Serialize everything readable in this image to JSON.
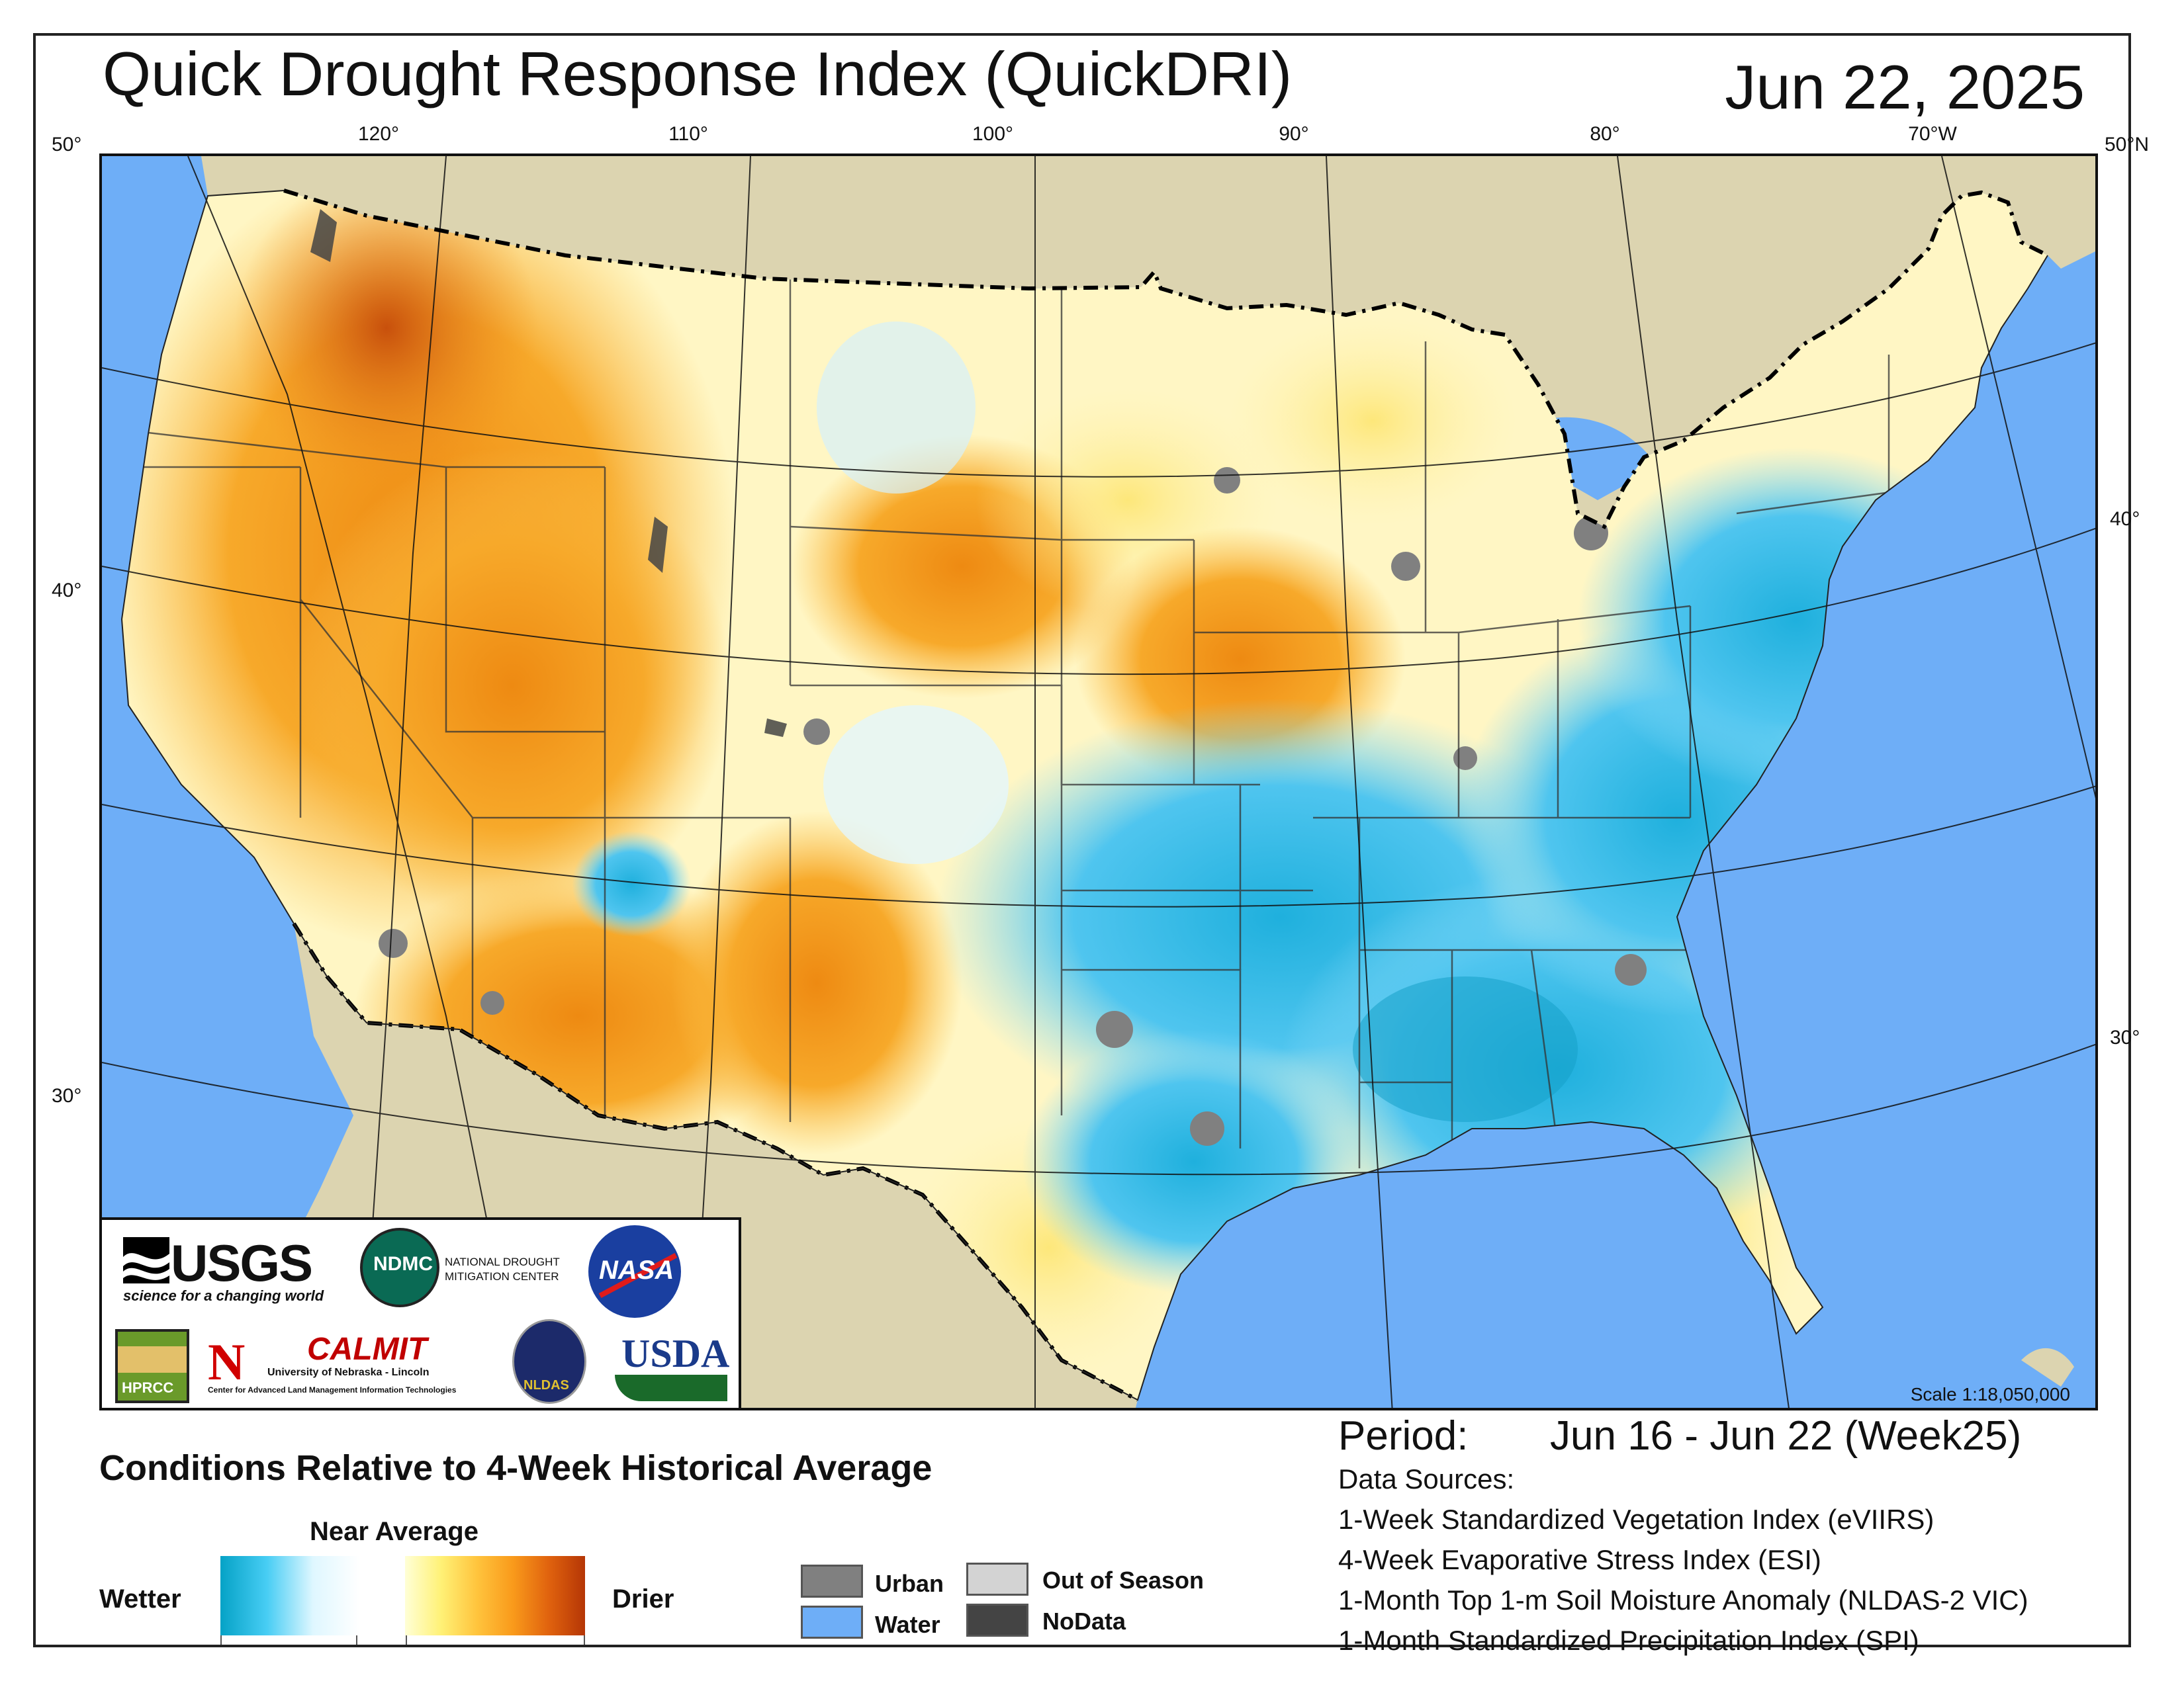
{
  "header": {
    "title": "Quick Drought Response Index (QuickDRI)",
    "date": "Jun 22, 2025"
  },
  "graticule": {
    "top_longitudes": [
      "120°",
      "110°",
      "100°",
      "90°",
      "80°",
      "70°W"
    ],
    "lat_left": [
      "50°",
      "40°",
      "30°"
    ],
    "lat_right": [
      "50°N",
      "40°",
      "30°"
    ]
  },
  "logos": {
    "usgs": "USGS",
    "usgs_tagline": "science for a changing world",
    "ndmc": "NDMC",
    "ndmc_name_line1": "NATIONAL DROUGHT",
    "ndmc_name_line2": "MITIGATION CENTER",
    "nasa": "NASA",
    "hprcc": "HPRCC",
    "calmit": "CALMIT",
    "calmit_univ": "University of Nebraska - Lincoln",
    "calmit_center": "Center for Advanced Land Management Information Technologies",
    "nldas": "NLDAS",
    "usda": "USDA"
  },
  "scale": "Scale 1:18,050,000",
  "period": {
    "label": "Period:",
    "value": "Jun 16 - Jun 22 (Week25)"
  },
  "data_sources": {
    "heading": "Data Sources:",
    "items": [
      "1-Week Standardized Vegetation Index (eVIIRS)",
      "4-Week Evaporative Stress Index (ESI)",
      "1-Month Top 1-m Soil Moisture Anomaly (NLDAS-2 VIC)",
      "1-Month Standardized Precipitation Index (SPI)"
    ]
  },
  "legend": {
    "title": "Conditions Relative to 4-Week Historical Average",
    "near_average": "Near Average",
    "wetter": "Wetter",
    "drier": "Drier",
    "categories": [
      {
        "label": "Urban",
        "color": "#808080"
      },
      {
        "label": "Water",
        "color": "#6eaef7"
      },
      {
        "label": "Out of Season",
        "color": "#d3d3d3"
      },
      {
        "label": "NoData",
        "color": "#444444"
      }
    ],
    "colors": {
      "wet_dark": "#05a2c6",
      "wet_light": "#47cdf4",
      "neutral": "#ffffff",
      "dry_light": "#fff176",
      "dry_mid": "#f99a1b",
      "dry_dark": "#b53606"
    }
  }
}
